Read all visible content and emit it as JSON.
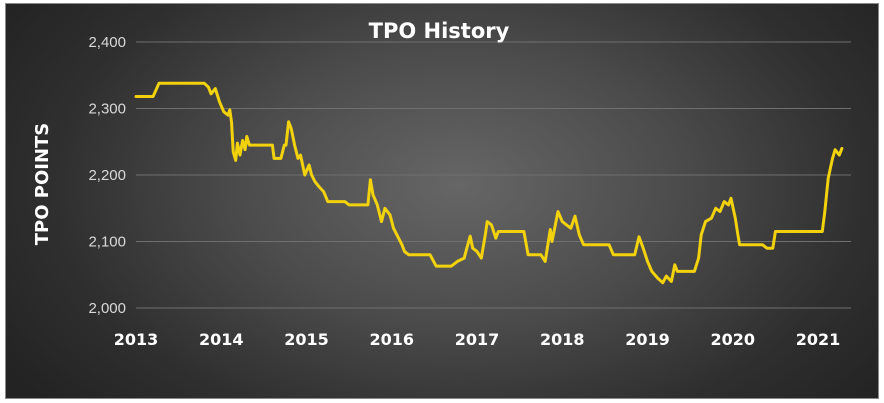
{
  "chart_data": {
    "type": "line",
    "title": "TPO History",
    "xlabel": "",
    "ylabel": "TPO POINTS",
    "xlim": [
      2013,
      2021.35
    ],
    "ylim": [
      2000,
      2400
    ],
    "x_ticks": [
      "2013",
      "2014",
      "2015",
      "2016",
      "2017",
      "2018",
      "2019",
      "2020",
      "2021"
    ],
    "y_ticks": [
      "2,000",
      "2,100",
      "2,200",
      "2,300",
      "2,400"
    ],
    "grid": true,
    "legend": "none",
    "series": [
      {
        "color": "#f2d20c",
        "points": [
          [
            2013.0,
            2318
          ],
          [
            2013.2,
            2318
          ],
          [
            2013.27,
            2338
          ],
          [
            2013.8,
            2338
          ],
          [
            2013.85,
            2332
          ],
          [
            2013.88,
            2322
          ],
          [
            2013.93,
            2330
          ],
          [
            2013.98,
            2310
          ],
          [
            2014.03,
            2295
          ],
          [
            2014.08,
            2290
          ],
          [
            2014.1,
            2298
          ],
          [
            2014.12,
            2280
          ],
          [
            2014.14,
            2235
          ],
          [
            2014.17,
            2222
          ],
          [
            2014.19,
            2248
          ],
          [
            2014.22,
            2230
          ],
          [
            2014.25,
            2252
          ],
          [
            2014.28,
            2238
          ],
          [
            2014.3,
            2258
          ],
          [
            2014.33,
            2245
          ],
          [
            2014.5,
            2245
          ],
          [
            2014.6,
            2245
          ],
          [
            2014.62,
            2225
          ],
          [
            2014.7,
            2225
          ],
          [
            2014.74,
            2245
          ],
          [
            2014.76,
            2245
          ],
          [
            2014.79,
            2280
          ],
          [
            2014.82,
            2270
          ],
          [
            2014.86,
            2245
          ],
          [
            2014.9,
            2225
          ],
          [
            2014.93,
            2230
          ],
          [
            2014.98,
            2200
          ],
          [
            2015.03,
            2215
          ],
          [
            2015.06,
            2200
          ],
          [
            2015.1,
            2190
          ],
          [
            2015.15,
            2182
          ],
          [
            2015.2,
            2175
          ],
          [
            2015.25,
            2160
          ],
          [
            2015.45,
            2160
          ],
          [
            2015.5,
            2155
          ],
          [
            2015.72,
            2155
          ],
          [
            2015.75,
            2193
          ],
          [
            2015.78,
            2170
          ],
          [
            2015.83,
            2155
          ],
          [
            2015.88,
            2130
          ],
          [
            2015.92,
            2150
          ],
          [
            2015.98,
            2140
          ],
          [
            2016.02,
            2120
          ],
          [
            2016.08,
            2105
          ],
          [
            2016.12,
            2095
          ],
          [
            2016.15,
            2085
          ],
          [
            2016.2,
            2080
          ],
          [
            2016.45,
            2080
          ],
          [
            2016.52,
            2063
          ],
          [
            2016.7,
            2063
          ],
          [
            2016.77,
            2070
          ],
          [
            2016.85,
            2075
          ],
          [
            2016.88,
            2090
          ],
          [
            2016.92,
            2108
          ],
          [
            2016.95,
            2090
          ],
          [
            2017.0,
            2085
          ],
          [
            2017.05,
            2075
          ],
          [
            2017.1,
            2112
          ],
          [
            2017.12,
            2130
          ],
          [
            2017.17,
            2125
          ],
          [
            2017.22,
            2105
          ],
          [
            2017.25,
            2115
          ],
          [
            2017.35,
            2115
          ],
          [
            2017.55,
            2115
          ],
          [
            2017.6,
            2080
          ],
          [
            2017.75,
            2080
          ],
          [
            2017.8,
            2070
          ],
          [
            2017.86,
            2118
          ],
          [
            2017.88,
            2100
          ],
          [
            2017.95,
            2145
          ],
          [
            2018.0,
            2130
          ],
          [
            2018.05,
            2125
          ],
          [
            2018.1,
            2120
          ],
          [
            2018.15,
            2138
          ],
          [
            2018.2,
            2110
          ],
          [
            2018.25,
            2095
          ],
          [
            2018.55,
            2095
          ],
          [
            2018.6,
            2080
          ],
          [
            2018.85,
            2080
          ],
          [
            2018.9,
            2107
          ],
          [
            2018.95,
            2090
          ],
          [
            2019.0,
            2070
          ],
          [
            2019.05,
            2055
          ],
          [
            2019.12,
            2045
          ],
          [
            2019.18,
            2038
          ],
          [
            2019.22,
            2048
          ],
          [
            2019.28,
            2040
          ],
          [
            2019.32,
            2065
          ],
          [
            2019.35,
            2055
          ],
          [
            2019.55,
            2055
          ],
          [
            2019.6,
            2075
          ],
          [
            2019.63,
            2110
          ],
          [
            2019.68,
            2130
          ],
          [
            2019.75,
            2135
          ],
          [
            2019.8,
            2150
          ],
          [
            2019.85,
            2145
          ],
          [
            2019.9,
            2160
          ],
          [
            2019.95,
            2155
          ],
          [
            2019.98,
            2165
          ],
          [
            2020.03,
            2135
          ],
          [
            2020.06,
            2110
          ],
          [
            2020.08,
            2095
          ],
          [
            2020.35,
            2095
          ],
          [
            2020.4,
            2090
          ],
          [
            2020.47,
            2090
          ],
          [
            2020.5,
            2115
          ],
          [
            2021.05,
            2115
          ],
          [
            2021.08,
            2145
          ],
          [
            2021.12,
            2195
          ],
          [
            2021.17,
            2225
          ],
          [
            2021.2,
            2238
          ],
          [
            2021.25,
            2230
          ],
          [
            2021.28,
            2240
          ]
        ]
      }
    ]
  }
}
